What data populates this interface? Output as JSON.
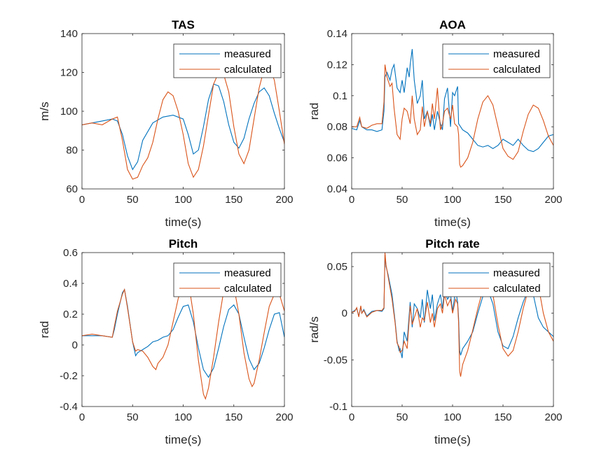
{
  "chart_data": [
    {
      "type": "line",
      "title": "TAS",
      "xlabel": "time(s)",
      "ylabel": "m/s",
      "xlim": [
        0,
        200
      ],
      "ylim": [
        60,
        140
      ],
      "xticks": [
        "0",
        "50",
        "100",
        "150",
        "200"
      ],
      "yticks": [
        "60",
        "80",
        "100",
        "120",
        "140"
      ],
      "legend": "top-right",
      "grid": false,
      "series": [
        {
          "name": "measured",
          "color": "#0072BD",
          "x": [
            0,
            10,
            20,
            30,
            35,
            40,
            45,
            50,
            55,
            60,
            70,
            80,
            90,
            100,
            105,
            110,
            115,
            120,
            125,
            130,
            135,
            140,
            145,
            150,
            155,
            160,
            165,
            170,
            175,
            180,
            185,
            190,
            195,
            200
          ],
          "y": [
            93,
            94,
            95,
            96,
            95,
            88,
            77,
            70,
            74,
            85,
            94,
            97,
            98,
            96,
            88,
            78,
            80,
            92,
            106,
            114,
            113,
            105,
            93,
            84,
            81,
            86,
            96,
            104,
            110,
            112,
            108,
            99,
            91,
            84
          ]
        },
        {
          "name": "calculated",
          "color": "#D95319",
          "x": [
            0,
            10,
            20,
            30,
            35,
            40,
            45,
            50,
            55,
            60,
            65,
            70,
            75,
            80,
            85,
            90,
            95,
            100,
            105,
            110,
            115,
            120,
            125,
            130,
            135,
            140,
            145,
            150,
            155,
            160,
            165,
            170,
            175,
            180,
            185,
            190,
            195,
            200
          ],
          "y": [
            93,
            94,
            93,
            96,
            97,
            85,
            70,
            65,
            66,
            72,
            76,
            84,
            96,
            106,
            110,
            108,
            100,
            88,
            73,
            66,
            70,
            82,
            98,
            114,
            120,
            119,
            110,
            92,
            78,
            73,
            80,
            96,
            112,
            122,
            123,
            116,
            100,
            83
          ]
        }
      ]
    },
    {
      "type": "line",
      "title": "AOA",
      "xlabel": "time(s)",
      "ylabel": "rad",
      "xlim": [
        0,
        200
      ],
      "ylim": [
        0.04,
        0.14
      ],
      "xticks": [
        "0",
        "50",
        "100",
        "150",
        "200"
      ],
      "yticks": [
        "0.04",
        "0.06",
        "0.08",
        "0.1",
        "0.12",
        "0.14"
      ],
      "legend": "top-right",
      "grid": false,
      "series": [
        {
          "name": "measured",
          "color": "#0072BD",
          "x": [
            0,
            5,
            8,
            10,
            15,
            20,
            25,
            30,
            32,
            33,
            35,
            38,
            40,
            42,
            45,
            48,
            50,
            52,
            55,
            57,
            58,
            60,
            62,
            65,
            68,
            70,
            72,
            75,
            78,
            80,
            82,
            85,
            88,
            90,
            92,
            95,
            98,
            100,
            102,
            105,
            106,
            108,
            110,
            115,
            120,
            125,
            130,
            135,
            140,
            145,
            150,
            155,
            160,
            165,
            170,
            175,
            180,
            185,
            190,
            195,
            200
          ],
          "y": [
            0.079,
            0.078,
            0.084,
            0.08,
            0.078,
            0.078,
            0.077,
            0.078,
            0.09,
            0.112,
            0.115,
            0.11,
            0.117,
            0.12,
            0.105,
            0.102,
            0.11,
            0.102,
            0.118,
            0.112,
            0.12,
            0.13,
            0.11,
            0.095,
            0.1,
            0.11,
            0.085,
            0.09,
            0.08,
            0.088,
            0.078,
            0.09,
            0.082,
            0.078,
            0.098,
            0.105,
            0.08,
            0.102,
            0.1,
            0.106,
            0.082,
            0.08,
            0.078,
            0.076,
            0.072,
            0.068,
            0.067,
            0.068,
            0.066,
            0.068,
            0.072,
            0.07,
            0.068,
            0.072,
            0.068,
            0.065,
            0.064,
            0.066,
            0.07,
            0.074,
            0.075
          ]
        },
        {
          "name": "calculated",
          "color": "#D95319",
          "x": [
            0,
            5,
            8,
            10,
            15,
            20,
            25,
            30,
            32,
            33,
            35,
            38,
            40,
            42,
            45,
            48,
            50,
            52,
            55,
            58,
            60,
            62,
            65,
            68,
            70,
            72,
            75,
            78,
            80,
            82,
            85,
            88,
            90,
            92,
            95,
            98,
            100,
            102,
            105,
            106,
            107,
            108,
            110,
            115,
            120,
            125,
            130,
            135,
            140,
            145,
            150,
            155,
            160,
            165,
            170,
            175,
            180,
            185,
            190,
            195,
            200
          ],
          "y": [
            0.08,
            0.08,
            0.086,
            0.08,
            0.079,
            0.081,
            0.082,
            0.082,
            0.096,
            0.12,
            0.112,
            0.106,
            0.108,
            0.092,
            0.075,
            0.072,
            0.085,
            0.092,
            0.09,
            0.082,
            0.1,
            0.085,
            0.075,
            0.078,
            0.093,
            0.08,
            0.09,
            0.082,
            0.095,
            0.085,
            0.105,
            0.078,
            0.082,
            0.09,
            0.092,
            0.085,
            0.094,
            0.082,
            0.08,
            0.075,
            0.056,
            0.054,
            0.055,
            0.06,
            0.07,
            0.085,
            0.096,
            0.1,
            0.094,
            0.08,
            0.066,
            0.061,
            0.059,
            0.064,
            0.077,
            0.088,
            0.094,
            0.092,
            0.084,
            0.074,
            0.068
          ]
        }
      ]
    },
    {
      "type": "line",
      "title": "Pitch",
      "xlabel": "time(s)",
      "ylabel": "rad",
      "xlim": [
        0,
        200
      ],
      "ylim": [
        -0.4,
        0.6
      ],
      "xticks": [
        "0",
        "50",
        "100",
        "150",
        "200"
      ],
      "yticks": [
        "-0.4",
        "-0.2",
        "0",
        "0.2",
        "0.4",
        "0.6"
      ],
      "legend": "top-right",
      "grid": false,
      "series": [
        {
          "name": "measured",
          "color": "#0072BD",
          "x": [
            0,
            10,
            20,
            30,
            32,
            35,
            40,
            42,
            45,
            50,
            53,
            55,
            60,
            65,
            70,
            75,
            80,
            85,
            90,
            95,
            100,
            105,
            110,
            115,
            120,
            125,
            130,
            135,
            140,
            145,
            150,
            155,
            160,
            165,
            170,
            175,
            180,
            185,
            190,
            195,
            200
          ],
          "y": [
            0.06,
            0.06,
            0.06,
            0.05,
            0.1,
            0.2,
            0.34,
            0.36,
            0.25,
            0.02,
            -0.07,
            -0.05,
            -0.03,
            -0.01,
            0.02,
            0.03,
            0.05,
            0.06,
            0.1,
            0.18,
            0.25,
            0.26,
            0.15,
            -0.02,
            -0.16,
            -0.21,
            -0.15,
            -0.02,
            0.12,
            0.23,
            0.26,
            0.2,
            0.05,
            -0.09,
            -0.16,
            -0.12,
            -0.02,
            0.1,
            0.2,
            0.21,
            0.05
          ]
        },
        {
          "name": "calculated",
          "color": "#D95319",
          "x": [
            0,
            10,
            20,
            30,
            32,
            35,
            40,
            42,
            45,
            50,
            53,
            55,
            60,
            65,
            70,
            73,
            75,
            80,
            85,
            90,
            95,
            100,
            105,
            110,
            115,
            120,
            122,
            125,
            130,
            135,
            140,
            145,
            150,
            155,
            160,
            165,
            168,
            170,
            175,
            180,
            185,
            190,
            195,
            200
          ],
          "y": [
            0.06,
            0.07,
            0.06,
            0.05,
            0.12,
            0.22,
            0.33,
            0.36,
            0.24,
            0.02,
            -0.04,
            -0.03,
            -0.04,
            -0.08,
            -0.14,
            -0.16,
            -0.12,
            -0.08,
            0.0,
            0.15,
            0.3,
            0.4,
            0.42,
            0.2,
            -0.1,
            -0.32,
            -0.35,
            -0.28,
            -0.08,
            0.15,
            0.35,
            0.42,
            0.38,
            0.2,
            -0.05,
            -0.22,
            -0.27,
            -0.25,
            -0.1,
            0.08,
            0.25,
            0.33,
            0.33,
            0.22
          ]
        }
      ]
    },
    {
      "type": "line",
      "title": "Pitch rate",
      "xlabel": "time(s)",
      "ylabel": "rad/s",
      "xlim": [
        0,
        200
      ],
      "ylim": [
        -0.1,
        0.065
      ],
      "xticks": [
        "0",
        "50",
        "100",
        "150",
        "200"
      ],
      "yticks": [
        "-0.1",
        "-0.05",
        "0",
        "0.05"
      ],
      "legend": "top-right",
      "grid": false,
      "series": [
        {
          "name": "measured",
          "color": "#0072BD",
          "x": [
            0,
            3,
            5,
            7,
            9,
            10,
            12,
            15,
            20,
            25,
            30,
            32,
            33,
            34,
            36,
            40,
            43,
            45,
            47,
            48,
            50,
            52,
            55,
            58,
            60,
            62,
            65,
            68,
            70,
            72,
            75,
            78,
            80,
            82,
            85,
            88,
            90,
            92,
            95,
            98,
            100,
            103,
            105,
            106,
            107,
            108,
            110,
            115,
            120,
            125,
            130,
            135,
            140,
            145,
            150,
            155,
            160,
            165,
            170,
            175,
            180,
            185,
            190,
            195,
            200
          ],
          "y": [
            0.001,
            0.003,
            0.005,
            -0.003,
            0.007,
            0.0,
            0.004,
            -0.003,
            0.002,
            0.003,
            0.002,
            0.005,
            0.063,
            0.05,
            0.042,
            0.02,
            -0.008,
            -0.03,
            -0.04,
            -0.038,
            -0.048,
            -0.02,
            -0.03,
            0.012,
            -0.015,
            0.01,
            0.005,
            -0.005,
            0.015,
            -0.01,
            0.025,
            0.005,
            0.02,
            -0.008,
            0.01,
            0.02,
            0.005,
            0.025,
            0.015,
            0.02,
            0.002,
            0.025,
            0.012,
            -0.005,
            -0.04,
            -0.045,
            -0.038,
            -0.03,
            -0.02,
            0.0,
            0.018,
            0.025,
            0.01,
            -0.02,
            -0.035,
            -0.038,
            -0.025,
            -0.005,
            0.012,
            0.025,
            0.02,
            -0.005,
            -0.015,
            -0.02,
            -0.025
          ]
        },
        {
          "name": "calculated",
          "color": "#D95319",
          "x": [
            0,
            3,
            5,
            7,
            9,
            10,
            12,
            15,
            20,
            25,
            30,
            32,
            33,
            34,
            36,
            40,
            43,
            45,
            47,
            48,
            50,
            52,
            55,
            58,
            60,
            62,
            65,
            68,
            70,
            72,
            75,
            78,
            80,
            82,
            85,
            88,
            90,
            92,
            95,
            98,
            100,
            103,
            105,
            106,
            107,
            108,
            110,
            115,
            120,
            125,
            130,
            135,
            140,
            145,
            150,
            155,
            160,
            165,
            170,
            175,
            180,
            185,
            190,
            195,
            200
          ],
          "y": [
            0.001,
            0.002,
            0.006,
            -0.004,
            0.008,
            0.0,
            0.003,
            -0.004,
            0.001,
            0.003,
            0.003,
            0.006,
            0.065,
            0.052,
            0.04,
            0.015,
            -0.01,
            -0.032,
            -0.036,
            -0.042,
            -0.04,
            -0.03,
            -0.038,
            0.008,
            -0.012,
            -0.005,
            0.005,
            -0.015,
            -0.005,
            -0.008,
            0.012,
            -0.01,
            0.0,
            -0.015,
            0.005,
            0.01,
            0.0,
            0.02,
            0.008,
            0.015,
            0.0,
            0.015,
            0.01,
            -0.01,
            -0.062,
            -0.068,
            -0.055,
            -0.04,
            -0.018,
            0.005,
            0.025,
            0.032,
            0.02,
            -0.012,
            -0.038,
            -0.046,
            -0.04,
            -0.02,
            0.005,
            0.025,
            0.035,
            0.03,
            0.0,
            -0.02,
            -0.03
          ]
        }
      ]
    }
  ]
}
